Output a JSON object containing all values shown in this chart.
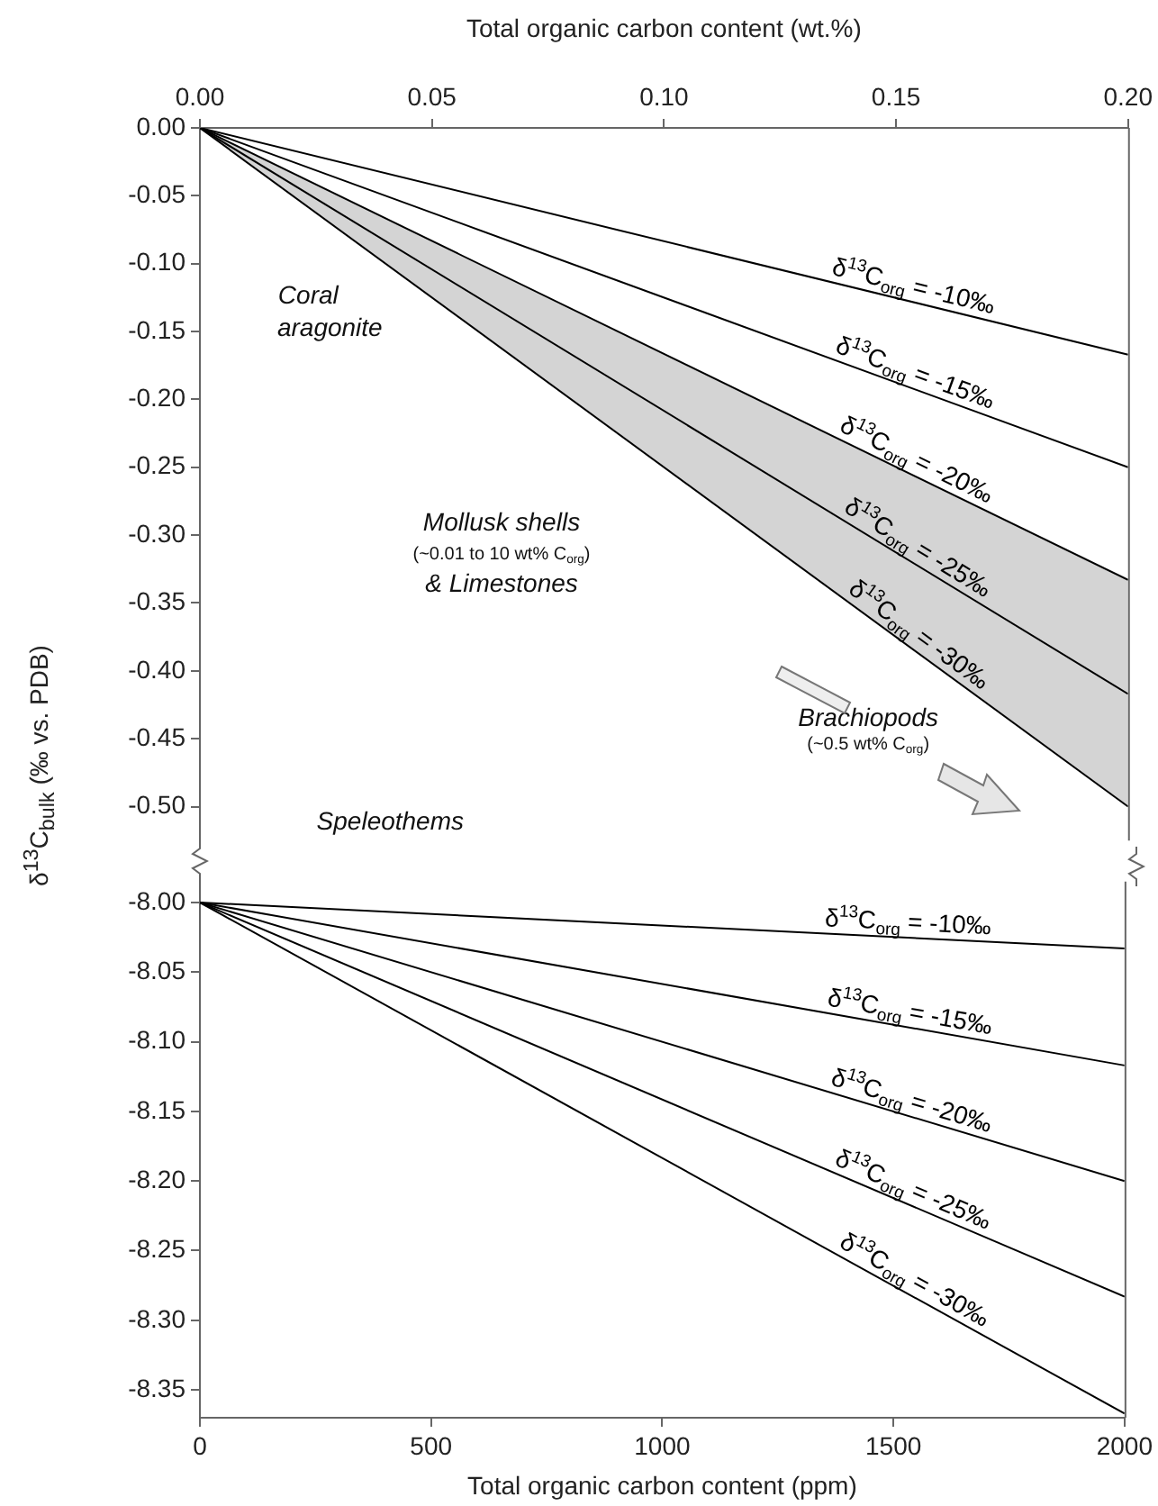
{
  "chart_data": [
    {
      "type": "line",
      "xlabel": "Total organic carbon content (wt.%)",
      "ylabel": "δ$^{13}$C$_{bulk}$ (‰ vs. PDB)",
      "x": [
        0,
        0.2
      ],
      "series": [
        {
          "name": "δ$^{13}$C$_{org}$ = -10‰",
          "color": "#000000",
          "values": [
            0,
            -0.167
          ]
        },
        {
          "name": "δ$^{13}$C$_{org}$ = -15‰",
          "color": "#000000",
          "values": [
            0,
            -0.25
          ]
        },
        {
          "name": "δ$^{13}$C$_{org}$ = -20‰",
          "color": "#000000",
          "values": [
            0,
            -0.333
          ]
        },
        {
          "name": "δ$^{13}$C$_{org}$ = -25‰",
          "color": "#000000",
          "values": [
            0,
            -0.417
          ],
          "lower": [
            0,
            -0.5
          ],
          "upper": [
            0,
            -0.333
          ]
        },
        {
          "name": "δ$^{13}$C$_{org}$ = -30‰",
          "color": "#000000",
          "values": [
            0,
            -0.5
          ]
        }
      ],
      "xlim": [
        0,
        0.2
      ],
      "xticks": [
        {
          "value": 0,
          "label": "0.00"
        },
        {
          "value": 0.05,
          "label": "0.05"
        },
        {
          "value": 0.1,
          "label": "0.10"
        },
        {
          "value": 0.15,
          "label": "0.15"
        },
        {
          "value": 0.2,
          "label": "0.20"
        }
      ],
      "ylim": [
        -0.525,
        0
      ],
      "yticks": [
        {
          "value": 0,
          "label": "0.00"
        },
        {
          "value": -0.05,
          "label": "-0.05"
        },
        {
          "value": -0.1,
          "label": "-0.10"
        },
        {
          "value": -0.15,
          "label": "-0.15"
        },
        {
          "value": -0.2,
          "label": "-0.20"
        },
        {
          "value": -0.25,
          "label": "-0.25"
        },
        {
          "value": -0.3,
          "label": "-0.30"
        },
        {
          "value": -0.35,
          "label": "-0.35"
        },
        {
          "value": -0.4,
          "label": "-0.40"
        },
        {
          "value": -0.45,
          "label": "-0.45"
        },
        {
          "value": -0.5,
          "label": "-0.50"
        }
      ],
      "annotations": [
        "Coral aragonite",
        "Mollusk shells",
        "(~0.01 to 10 wt% C$_{org}$)",
        "& Limestones",
        "Brachiopods",
        "(~0.5 wt% C$_{org}$)",
        "Speleothems"
      ],
      "grid": false
    },
    {
      "type": "line",
      "xlabel": "Total organic carbon content (ppm)",
      "x": [
        0,
        2000
      ],
      "series": [
        {
          "name": "δ$^{13}$C$_{org}$ = -10‰",
          "color": "#000000",
          "values": [
            -8,
            -8.033
          ]
        },
        {
          "name": "δ$^{13}$C$_{org}$ = -15‰",
          "color": "#000000",
          "values": [
            -8,
            -8.117
          ]
        },
        {
          "name": "δ$^{13}$C$_{org}$ = -20‰",
          "color": "#000000",
          "values": [
            -8,
            -8.2
          ]
        },
        {
          "name": "δ$^{13}$C$_{org}$ = -25‰",
          "color": "#000000",
          "values": [
            -8,
            -8.283
          ]
        },
        {
          "name": "δ$^{13}$C$_{org}$ = -30‰",
          "color": "#000000",
          "values": [
            -8,
            -8.367
          ]
        }
      ],
      "xlim": [
        0,
        2000
      ],
      "xticks": [
        0,
        500,
        1000,
        1500,
        2000
      ],
      "ylim": [
        -8.37,
        -7.985
      ],
      "yticks": [
        {
          "value": -8,
          "label": "-8.00"
        },
        {
          "value": -8.05,
          "label": "-8.05"
        },
        {
          "value": -8.1,
          "label": "-8.10"
        },
        {
          "value": -8.15,
          "label": "-8.15"
        },
        {
          "value": -8.2,
          "label": "-8.20"
        },
        {
          "value": -8.25,
          "label": "-8.25"
        },
        {
          "value": -8.3,
          "label": "-8.30"
        },
        {
          "value": -8.35,
          "label": "-8.35"
        }
      ],
      "grid": false
    }
  ]
}
